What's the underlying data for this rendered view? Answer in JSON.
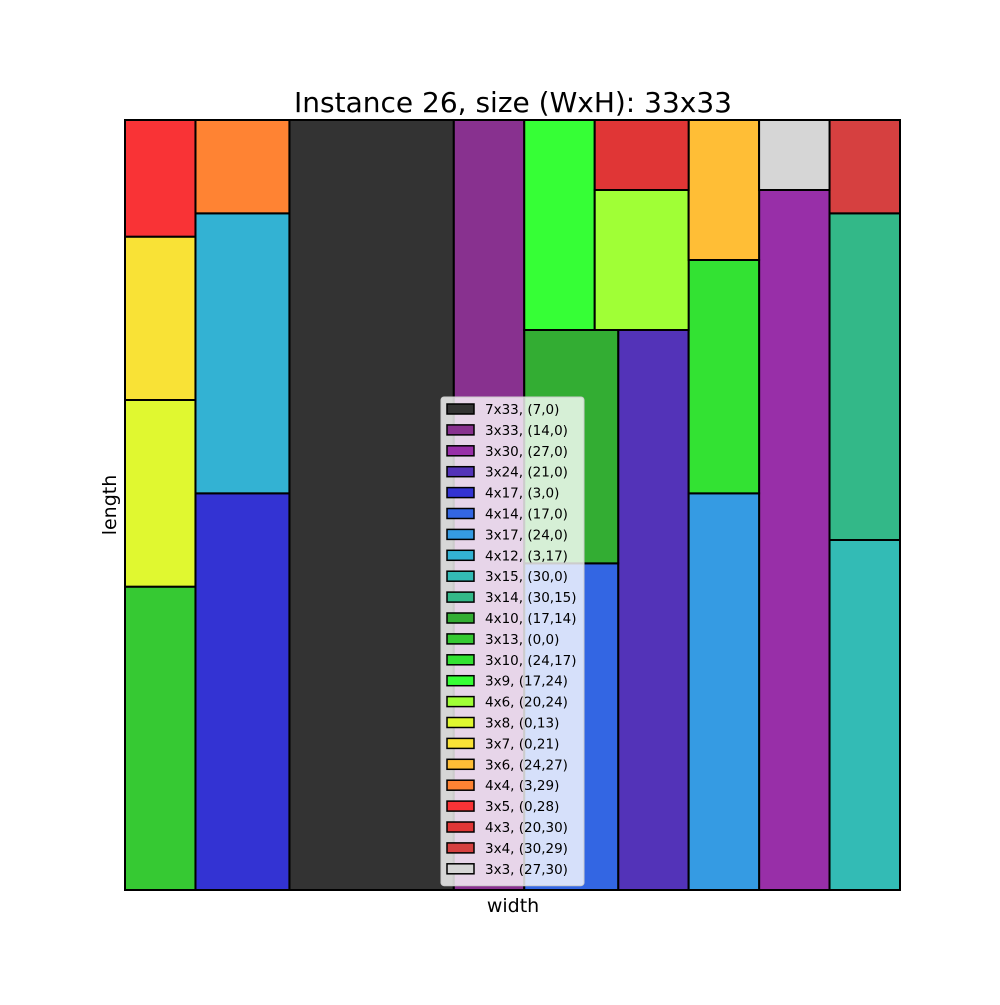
{
  "chart_data": {
    "type": "rectangle-packing",
    "title": "Instance 26, size (WxH): 33x33",
    "xlabel": "width",
    "ylabel": "length",
    "xlim": [
      0,
      33
    ],
    "ylim": [
      0,
      33
    ],
    "axis_ticks": false,
    "legend_position": "center",
    "rectangles": [
      {
        "label": "7x33, (7,0)",
        "w": 7,
        "h": 33,
        "x": 7,
        "y": 0,
        "color": "#333333"
      },
      {
        "label": "3x33, (14,0)",
        "w": 3,
        "h": 33,
        "x": 14,
        "y": 0,
        "color": "#88318f"
      },
      {
        "label": "3x30, (27,0)",
        "w": 3,
        "h": 30,
        "x": 27,
        "y": 0,
        "color": "#982fa8"
      },
      {
        "label": "3x24, (21,0)",
        "w": 3,
        "h": 24,
        "x": 21,
        "y": 0,
        "color": "#5333b8"
      },
      {
        "label": "4x17, (3,0)",
        "w": 4,
        "h": 17,
        "x": 3,
        "y": 0,
        "color": "#3333d3"
      },
      {
        "label": "4x14, (17,0)",
        "w": 4,
        "h": 14,
        "x": 17,
        "y": 0,
        "color": "#3366e3"
      },
      {
        "label": "3x17, (24,0)",
        "w": 3,
        "h": 17,
        "x": 24,
        "y": 0,
        "color": "#359be3"
      },
      {
        "label": "4x12, (3,17)",
        "w": 4,
        "h": 12,
        "x": 3,
        "y": 17,
        "color": "#33b2d3"
      },
      {
        "label": "3x15, (30,0)",
        "w": 3,
        "h": 15,
        "x": 30,
        "y": 0,
        "color": "#33bbb5"
      },
      {
        "label": "3x14, (30,15)",
        "w": 3,
        "h": 14,
        "x": 30,
        "y": 15,
        "color": "#33b888"
      },
      {
        "label": "4x10, (17,14)",
        "w": 4,
        "h": 10,
        "x": 17,
        "y": 14,
        "color": "#33ad33"
      },
      {
        "label": "3x13, (0,0)",
        "w": 3,
        "h": 13,
        "x": 0,
        "y": 0,
        "color": "#36c933"
      },
      {
        "label": "3x10, (24,17)",
        "w": 3,
        "h": 10,
        "x": 24,
        "y": 17,
        "color": "#33e233"
      },
      {
        "label": "3x9, (17,24)",
        "w": 3,
        "h": 9,
        "x": 17,
        "y": 24,
        "color": "#36ff36"
      },
      {
        "label": "4x6, (20,24)",
        "w": 4,
        "h": 6,
        "x": 20,
        "y": 24,
        "color": "#a0ff36"
      },
      {
        "label": "3x8, (0,13)",
        "w": 3,
        "h": 8,
        "x": 0,
        "y": 13,
        "color": "#e0f830"
      },
      {
        "label": "3x7, (0,21)",
        "w": 3,
        "h": 7,
        "x": 0,
        "y": 21,
        "color": "#f9e236"
      },
      {
        "label": "3x6, (24,27)",
        "w": 3,
        "h": 6,
        "x": 24,
        "y": 27,
        "color": "#ffbe36"
      },
      {
        "label": "4x4, (3,29)",
        "w": 4,
        "h": 4,
        "x": 3,
        "y": 29,
        "color": "#ff8333"
      },
      {
        "label": "3x5, (0,28)",
        "w": 3,
        "h": 5,
        "x": 0,
        "y": 28,
        "color": "#f93336"
      },
      {
        "label": "4x3, (20,30)",
        "w": 4,
        "h": 3,
        "x": 20,
        "y": 30,
        "color": "#e03636"
      },
      {
        "label": "3x4, (30,29)",
        "w": 3,
        "h": 4,
        "x": 30,
        "y": 29,
        "color": "#d64040"
      },
      {
        "label": "3x3, (27,30)",
        "w": 3,
        "h": 3,
        "x": 27,
        "y": 30,
        "color": "#d6d6d6"
      }
    ]
  }
}
